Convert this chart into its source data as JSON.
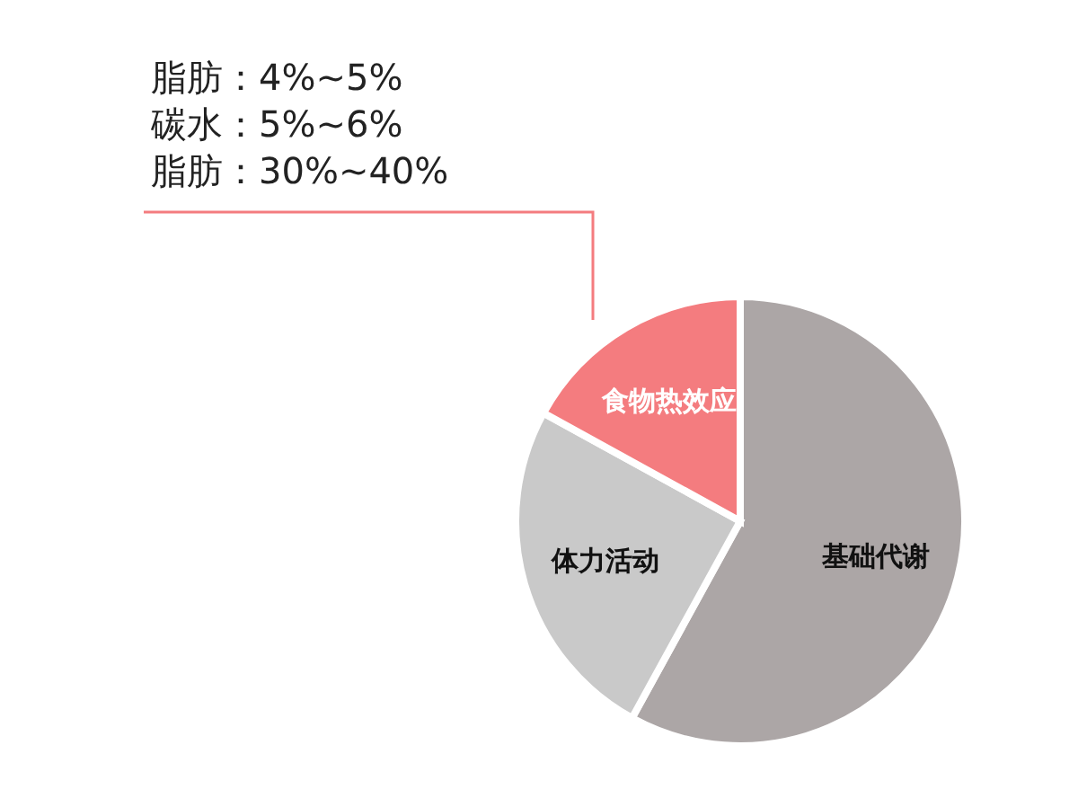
{
  "chart_data": {
    "type": "pie",
    "categories": [
      "基础代谢",
      "体力活动",
      "食物热效应"
    ],
    "values": [
      58,
      25,
      17
    ],
    "colors": [
      "#aca6a6",
      "#c9c9c9",
      "#f47c7f"
    ],
    "annotations": [
      "脂肪：4%~5%",
      "碳水：5%~6%",
      "脂肪：30%~40%"
    ]
  }
}
